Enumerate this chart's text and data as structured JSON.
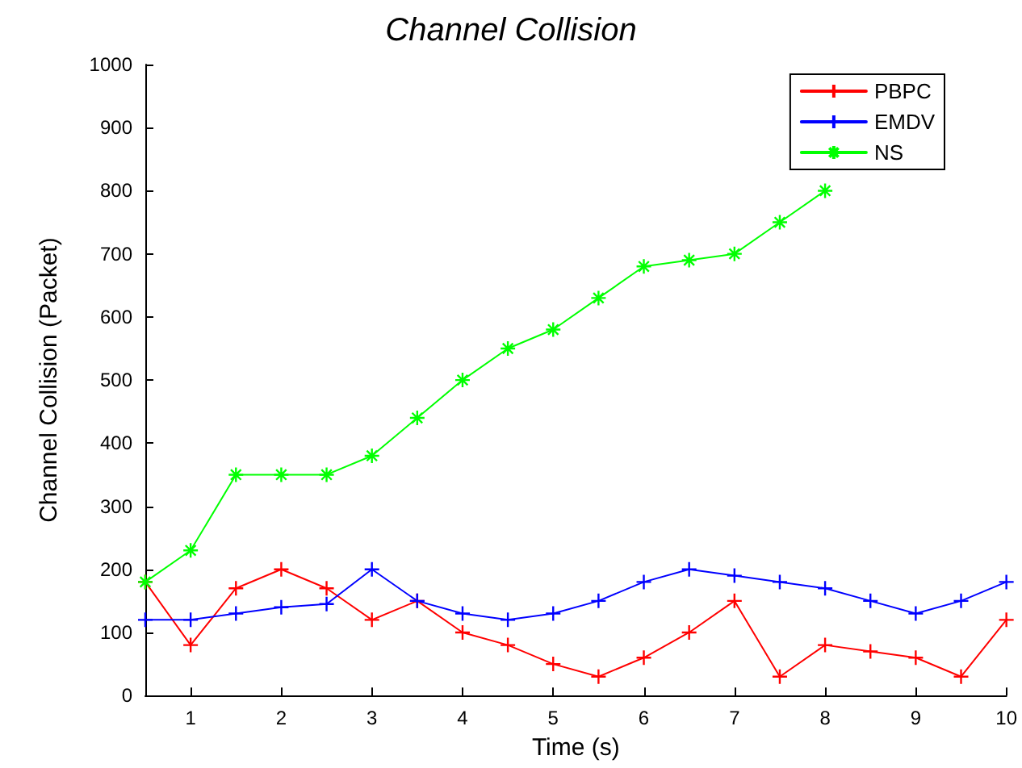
{
  "chart_data": {
    "type": "line",
    "title": "Channel Collision",
    "xlabel": "Time (s)",
    "ylabel": "Channel Collision (Packet)",
    "x": [
      0.5,
      1,
      1.5,
      2,
      2.5,
      3,
      3.5,
      4,
      4.5,
      5,
      5.5,
      6,
      6.5,
      7,
      7.5,
      8,
      8.5,
      9,
      9.5,
      10
    ],
    "series": [
      {
        "name": "PBPC",
        "color": "#ff0000",
        "marker": "cross",
        "values": [
          180,
          80,
          170,
          200,
          170,
          120,
          150,
          100,
          80,
          50,
          30,
          60,
          100,
          150,
          30,
          80,
          70,
          60,
          30,
          120
        ]
      },
      {
        "name": "EMDV",
        "color": "#0000ff",
        "marker": "cross",
        "values": [
          120,
          120,
          130,
          140,
          145,
          200,
          150,
          130,
          120,
          130,
          150,
          180,
          200,
          190,
          180,
          170,
          150,
          130,
          150,
          180
        ]
      },
      {
        "name": "NS",
        "color": "#00ff00",
        "marker": "star",
        "values": [
          180,
          230,
          350,
          350,
          350,
          380,
          440,
          500,
          550,
          580,
          630,
          680,
          690,
          700,
          750,
          800,
          null,
          null,
          null,
          null
        ]
      }
    ],
    "xlim": [
      0.5,
      10
    ],
    "xticks": [
      1,
      2,
      3,
      4,
      5,
      6,
      7,
      8,
      9,
      10
    ],
    "ylim": [
      0,
      1000
    ],
    "yticks": [
      0,
      100,
      200,
      300,
      400,
      500,
      600,
      700,
      800,
      900,
      1000
    ],
    "grid": false,
    "legend": "top right",
    "line_style": "solid"
  }
}
